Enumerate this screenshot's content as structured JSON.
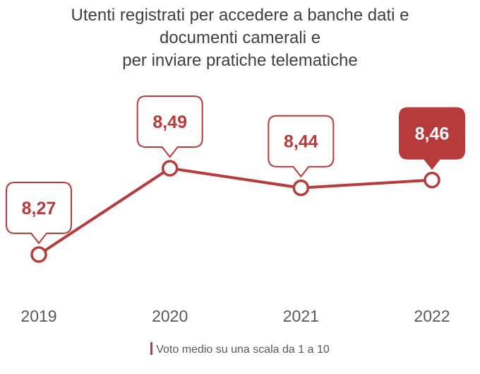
{
  "chart_data": {
    "type": "line",
    "title_lines": [
      "Utenti registrati per accedere a banche dati e",
      "documenti camerali e",
      "per inviare pratiche telematiche"
    ],
    "categories": [
      "2019",
      "2020",
      "2021",
      "2022"
    ],
    "series": [
      {
        "name": "Voto medio su una scala da 1 a 10",
        "values": [
          8.27,
          8.49,
          8.44,
          8.46
        ],
        "labels": [
          "8,27",
          "8,49",
          "8,44",
          "8,46"
        ]
      }
    ],
    "highlighted_category": "2022",
    "legend_position": "bottom",
    "grid": false,
    "colors": {
      "series": "#b83b3b",
      "highlight_fill": "#b83b3b",
      "callout_text": "#b83b3b",
      "highlight_text": "#ffffff",
      "axis_text": "#595959",
      "title": "#404040"
    }
  }
}
